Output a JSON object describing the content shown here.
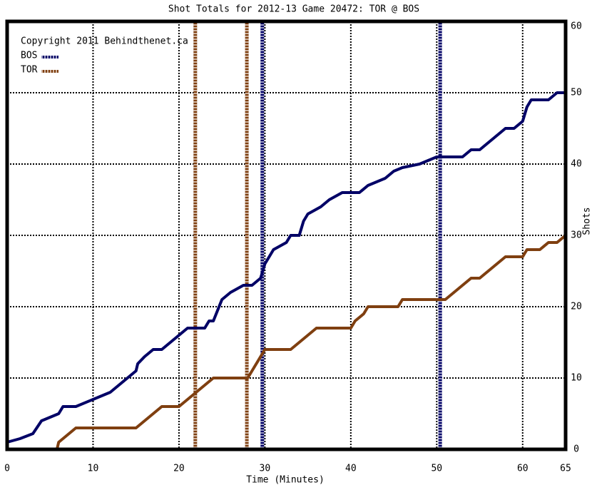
{
  "chart_data": {
    "type": "line",
    "title": "Shot Totals for 2012-13 Game 20472: TOR @ BOS",
    "annotation": "Copyright 2011 Behindthenet.ca",
    "xlabel": "Time (Minutes)",
    "ylabel": "Shots",
    "xlim": [
      0,
      65
    ],
    "ylim": [
      0,
      60
    ],
    "xticks": [
      0,
      10,
      20,
      30,
      40,
      50,
      60,
      65
    ],
    "yticks": [
      0,
      10,
      20,
      30,
      40,
      50,
      60
    ],
    "grid": true,
    "legend": "upper left",
    "series": [
      {
        "name": "BOS",
        "color": "#000066",
        "x": [
          0,
          1.5,
          3,
          4,
          5,
          6,
          6.5,
          8,
          10,
          12,
          13,
          14,
          15,
          15.2,
          16,
          17,
          18,
          20,
          21,
          23,
          23.5,
          24,
          25,
          26,
          27.5,
          28.5,
          29.5,
          30,
          31,
          32.5,
          33,
          34,
          34.5,
          35,
          36.5,
          37.5,
          39,
          41,
          42,
          44,
          45,
          46,
          48,
          50,
          51,
          53,
          54,
          55,
          56,
          57,
          58,
          59,
          60,
          60.5,
          61,
          63,
          64,
          65
        ],
        "values": [
          1,
          1.5,
          2.2,
          4,
          4.5,
          5,
          6,
          6,
          7,
          8,
          9,
          10,
          11,
          12,
          13,
          14,
          14,
          16,
          17,
          17,
          18,
          18,
          21,
          22,
          23,
          23,
          24,
          26,
          28,
          29,
          30,
          30,
          32,
          33,
          34,
          35,
          36,
          36,
          37,
          38,
          39,
          39.5,
          40,
          41,
          41,
          41,
          42,
          42,
          43,
          44,
          45,
          45,
          46,
          48,
          49,
          49,
          50,
          50
        ],
        "goals": [
          29.7,
          50.4
        ]
      },
      {
        "name": "TOR",
        "color": "#7f3f10",
        "x": [
          0,
          5.8,
          6,
          7,
          8,
          15,
          16,
          17,
          18,
          20,
          21,
          22,
          23,
          24,
          28,
          28.5,
          29,
          29.5,
          30,
          33,
          34,
          35,
          36,
          40,
          40.5,
          41.5,
          42,
          45.5,
          46,
          51,
          52,
          53,
          54,
          55,
          56,
          57,
          58,
          60,
          60.5,
          62,
          63,
          64,
          65
        ],
        "values": [
          0,
          0,
          1,
          2,
          3,
          3,
          4,
          5,
          6,
          6,
          7,
          8,
          9,
          10,
          10,
          11,
          12,
          13,
          14,
          14,
          15,
          16,
          17,
          17,
          18,
          19,
          20,
          20,
          21,
          21,
          22,
          23,
          24,
          24,
          25,
          26,
          27,
          27,
          28,
          28,
          29,
          29,
          30
        ],
        "goals": [
          21.9,
          27.9
        ]
      }
    ]
  }
}
